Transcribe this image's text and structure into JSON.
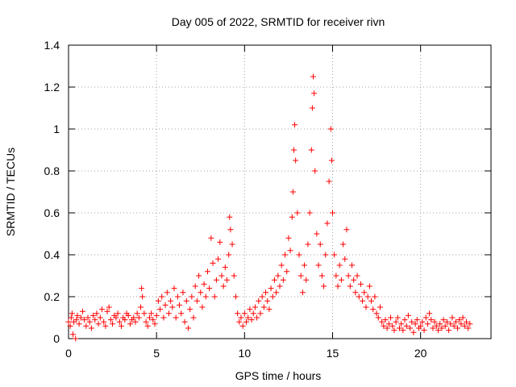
{
  "chart_data": {
    "type": "scatter",
    "title": "Day 005 of 2022, SRMTID for receiver rivn",
    "xlabel": "GPS time / hours",
    "ylabel": "SRMTID / TECUs",
    "xlim": [
      0,
      24
    ],
    "ylim": [
      0,
      1.4
    ],
    "xticks": [
      0,
      5,
      10,
      15,
      20
    ],
    "xtick_labels": [
      "0",
      "5",
      "10",
      "15",
      "20"
    ],
    "yticks": [
      0,
      0.2,
      0.4,
      0.6,
      0.8,
      1.0,
      1.2,
      1.4
    ],
    "ytick_labels": [
      "0",
      "0.2",
      "0.4",
      "0.6",
      "0.8",
      "1",
      "1.2",
      "1.4"
    ],
    "grid": true,
    "marker": "+",
    "color": "#ff0000",
    "series": [
      {
        "name": "SRMTID",
        "points": [
          [
            0.0,
            0.08
          ],
          [
            0.1,
            0.06
          ],
          [
            0.15,
            0.1
          ],
          [
            0.2,
            0.12
          ],
          [
            0.25,
            0.02
          ],
          [
            0.3,
            0.08
          ],
          [
            0.4,
            0.0
          ],
          [
            0.45,
            0.09
          ],
          [
            0.5,
            0.11
          ],
          [
            0.6,
            0.07
          ],
          [
            0.7,
            0.1
          ],
          [
            0.8,
            0.13
          ],
          [
            0.9,
            0.09
          ],
          [
            1.0,
            0.06
          ],
          [
            1.1,
            0.1
          ],
          [
            1.2,
            0.08
          ],
          [
            1.3,
            0.05
          ],
          [
            1.4,
            0.11
          ],
          [
            1.5,
            0.09
          ],
          [
            1.6,
            0.12
          ],
          [
            1.7,
            0.07
          ],
          [
            1.8,
            0.1
          ],
          [
            1.9,
            0.14
          ],
          [
            2.0,
            0.08
          ],
          [
            2.1,
            0.06
          ],
          [
            2.2,
            0.13
          ],
          [
            2.3,
            0.15
          ],
          [
            2.4,
            0.09
          ],
          [
            2.5,
            0.07
          ],
          [
            2.6,
            0.11
          ],
          [
            2.7,
            0.1
          ],
          [
            2.8,
            0.12
          ],
          [
            2.9,
            0.08
          ],
          [
            3.0,
            0.06
          ],
          [
            3.1,
            0.1
          ],
          [
            3.2,
            0.09
          ],
          [
            3.3,
            0.12
          ],
          [
            3.4,
            0.11
          ],
          [
            3.5,
            0.07
          ],
          [
            3.6,
            0.09
          ],
          [
            3.7,
            0.1
          ],
          [
            3.8,
            0.08
          ],
          [
            3.9,
            0.12
          ],
          [
            4.0,
            0.1
          ],
          [
            4.1,
            0.15
          ],
          [
            4.15,
            0.24
          ],
          [
            4.2,
            0.2
          ],
          [
            4.3,
            0.12
          ],
          [
            4.4,
            0.08
          ],
          [
            4.5,
            0.06
          ],
          [
            4.6,
            0.1
          ],
          [
            4.7,
            0.12
          ],
          [
            4.8,
            0.09
          ],
          [
            4.9,
            0.07
          ],
          [
            5.0,
            0.11
          ],
          [
            5.1,
            0.18
          ],
          [
            5.2,
            0.14
          ],
          [
            5.3,
            0.2
          ],
          [
            5.4,
            0.1
          ],
          [
            5.5,
            0.16
          ],
          [
            5.6,
            0.22
          ],
          [
            5.7,
            0.12
          ],
          [
            5.8,
            0.18
          ],
          [
            5.9,
            0.15
          ],
          [
            6.0,
            0.24
          ],
          [
            6.1,
            0.1
          ],
          [
            6.2,
            0.2
          ],
          [
            6.3,
            0.16
          ],
          [
            6.4,
            0.12
          ],
          [
            6.5,
            0.22
          ],
          [
            6.6,
            0.08
          ],
          [
            6.7,
            0.18
          ],
          [
            6.8,
            0.05
          ],
          [
            6.9,
            0.14
          ],
          [
            7.0,
            0.2
          ],
          [
            7.1,
            0.1
          ],
          [
            7.2,
            0.25
          ],
          [
            7.3,
            0.18
          ],
          [
            7.4,
            0.3
          ],
          [
            7.5,
            0.22
          ],
          [
            7.6,
            0.15
          ],
          [
            7.7,
            0.26
          ],
          [
            7.8,
            0.2
          ],
          [
            7.9,
            0.32
          ],
          [
            8.0,
            0.24
          ],
          [
            8.1,
            0.48
          ],
          [
            8.2,
            0.36
          ],
          [
            8.3,
            0.2
          ],
          [
            8.4,
            0.28
          ],
          [
            8.5,
            0.38
          ],
          [
            8.6,
            0.46
          ],
          [
            8.7,
            0.3
          ],
          [
            8.8,
            0.25
          ],
          [
            8.9,
            0.34
          ],
          [
            9.0,
            0.28
          ],
          [
            9.1,
            0.4
          ],
          [
            9.15,
            0.58
          ],
          [
            9.2,
            0.52
          ],
          [
            9.3,
            0.45
          ],
          [
            9.4,
            0.3
          ],
          [
            9.5,
            0.2
          ],
          [
            9.6,
            0.12
          ],
          [
            9.7,
            0.08
          ],
          [
            9.8,
            0.1
          ],
          [
            9.9,
            0.06
          ],
          [
            10.0,
            0.12
          ],
          [
            10.1,
            0.08
          ],
          [
            10.2,
            0.1
          ],
          [
            10.3,
            0.14
          ],
          [
            10.4,
            0.09
          ],
          [
            10.5,
            0.12
          ],
          [
            10.6,
            0.15
          ],
          [
            10.7,
            0.1
          ],
          [
            10.8,
            0.18
          ],
          [
            10.9,
            0.12
          ],
          [
            11.0,
            0.2
          ],
          [
            11.1,
            0.15
          ],
          [
            11.2,
            0.22
          ],
          [
            11.3,
            0.18
          ],
          [
            11.4,
            0.14
          ],
          [
            11.5,
            0.24
          ],
          [
            11.6,
            0.2
          ],
          [
            11.7,
            0.28
          ],
          [
            11.8,
            0.22
          ],
          [
            11.9,
            0.3
          ],
          [
            12.0,
            0.25
          ],
          [
            12.1,
            0.35
          ],
          [
            12.2,
            0.28
          ],
          [
            12.3,
            0.4
          ],
          [
            12.4,
            0.32
          ],
          [
            12.5,
            0.48
          ],
          [
            12.6,
            0.42
          ],
          [
            12.7,
            0.58
          ],
          [
            12.75,
            0.7
          ],
          [
            12.8,
            0.9
          ],
          [
            12.85,
            1.02
          ],
          [
            12.9,
            0.85
          ],
          [
            13.0,
            0.6
          ],
          [
            13.1,
            0.4
          ],
          [
            13.2,
            0.3
          ],
          [
            13.3,
            0.22
          ],
          [
            13.4,
            0.35
          ],
          [
            13.5,
            0.28
          ],
          [
            13.6,
            0.45
          ],
          [
            13.7,
            0.6
          ],
          [
            13.8,
            0.9
          ],
          [
            13.85,
            1.1
          ],
          [
            13.9,
            1.25
          ],
          [
            13.95,
            1.17
          ],
          [
            14.0,
            0.8
          ],
          [
            14.1,
            0.5
          ],
          [
            14.2,
            0.35
          ],
          [
            14.3,
            0.45
          ],
          [
            14.4,
            0.3
          ],
          [
            14.5,
            0.25
          ],
          [
            14.6,
            0.4
          ],
          [
            14.7,
            0.55
          ],
          [
            14.8,
            0.75
          ],
          [
            14.9,
            1.0
          ],
          [
            14.95,
            0.85
          ],
          [
            15.0,
            0.6
          ],
          [
            15.1,
            0.4
          ],
          [
            15.2,
            0.3
          ],
          [
            15.3,
            0.25
          ],
          [
            15.4,
            0.35
          ],
          [
            15.5,
            0.28
          ],
          [
            15.6,
            0.45
          ],
          [
            15.7,
            0.38
          ],
          [
            15.8,
            0.52
          ],
          [
            15.9,
            0.3
          ],
          [
            16.0,
            0.25
          ],
          [
            16.1,
            0.35
          ],
          [
            16.2,
            0.28
          ],
          [
            16.3,
            0.22
          ],
          [
            16.4,
            0.3
          ],
          [
            16.5,
            0.2
          ],
          [
            16.6,
            0.26
          ],
          [
            16.7,
            0.18
          ],
          [
            16.8,
            0.22
          ],
          [
            16.9,
            0.15
          ],
          [
            17.0,
            0.2
          ],
          [
            17.1,
            0.25
          ],
          [
            17.2,
            0.18
          ],
          [
            17.3,
            0.14
          ],
          [
            17.4,
            0.2
          ],
          [
            17.5,
            0.12
          ],
          [
            17.6,
            0.1
          ],
          [
            17.7,
            0.15
          ],
          [
            17.8,
            0.08
          ],
          [
            17.9,
            0.06
          ],
          [
            18.0,
            0.09
          ],
          [
            18.1,
            0.05
          ],
          [
            18.2,
            0.07
          ],
          [
            18.3,
            0.1
          ],
          [
            18.4,
            0.06
          ],
          [
            18.5,
            0.04
          ],
          [
            18.6,
            0.08
          ],
          [
            18.7,
            0.1
          ],
          [
            18.8,
            0.05
          ],
          [
            18.9,
            0.07
          ],
          [
            19.0,
            0.04
          ],
          [
            19.1,
            0.09
          ],
          [
            19.2,
            0.06
          ],
          [
            19.3,
            0.11
          ],
          [
            19.4,
            0.05
          ],
          [
            19.5,
            0.08
          ],
          [
            19.6,
            0.03
          ],
          [
            19.7,
            0.07
          ],
          [
            19.8,
            0.09
          ],
          [
            19.9,
            0.05
          ],
          [
            20.0,
            0.06
          ],
          [
            20.1,
            0.08
          ],
          [
            20.2,
            0.04
          ],
          [
            20.3,
            0.1
          ],
          [
            20.4,
            0.07
          ],
          [
            20.5,
            0.12
          ],
          [
            20.6,
            0.09
          ],
          [
            20.7,
            0.05
          ],
          [
            20.8,
            0.08
          ],
          [
            20.9,
            0.06
          ],
          [
            21.0,
            0.04
          ],
          [
            21.1,
            0.07
          ],
          [
            21.2,
            0.05
          ],
          [
            21.3,
            0.09
          ],
          [
            21.4,
            0.06
          ],
          [
            21.5,
            0.08
          ],
          [
            21.6,
            0.04
          ],
          [
            21.7,
            0.07
          ],
          [
            21.8,
            0.1
          ],
          [
            21.9,
            0.06
          ],
          [
            22.0,
            0.08
          ],
          [
            22.1,
            0.05
          ],
          [
            22.2,
            0.09
          ],
          [
            22.3,
            0.07
          ],
          [
            22.4,
            0.1
          ],
          [
            22.5,
            0.06
          ],
          [
            22.6,
            0.08
          ],
          [
            22.7,
            0.05
          ],
          [
            22.8,
            0.07
          ]
        ]
      }
    ]
  }
}
